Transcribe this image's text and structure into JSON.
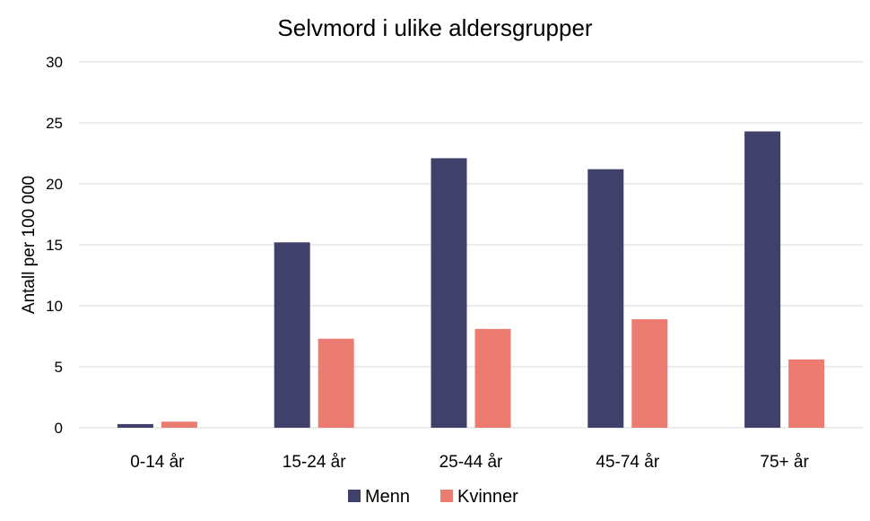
{
  "chart_data": {
    "type": "bar",
    "title": "Selvmord i ulike aldersgrupper",
    "xlabel": "",
    "ylabel": "Antall per 100 000",
    "ylim": [
      0,
      30
    ],
    "yticks": [
      0,
      5,
      10,
      15,
      20,
      25,
      30
    ],
    "grid": true,
    "legend_position": "bottom",
    "categories": [
      "0-14 år",
      "15-24 år",
      "25-44 år",
      "45-74 år",
      "75+ år"
    ],
    "series": [
      {
        "name": "Menn",
        "color": "#40416b",
        "values": [
          0.3,
          15.2,
          22.1,
          21.2,
          24.3
        ]
      },
      {
        "name": "Kvinner",
        "color": "#ec7c72",
        "values": [
          0.5,
          7.3,
          8.1,
          8.9,
          5.6
        ]
      }
    ]
  }
}
